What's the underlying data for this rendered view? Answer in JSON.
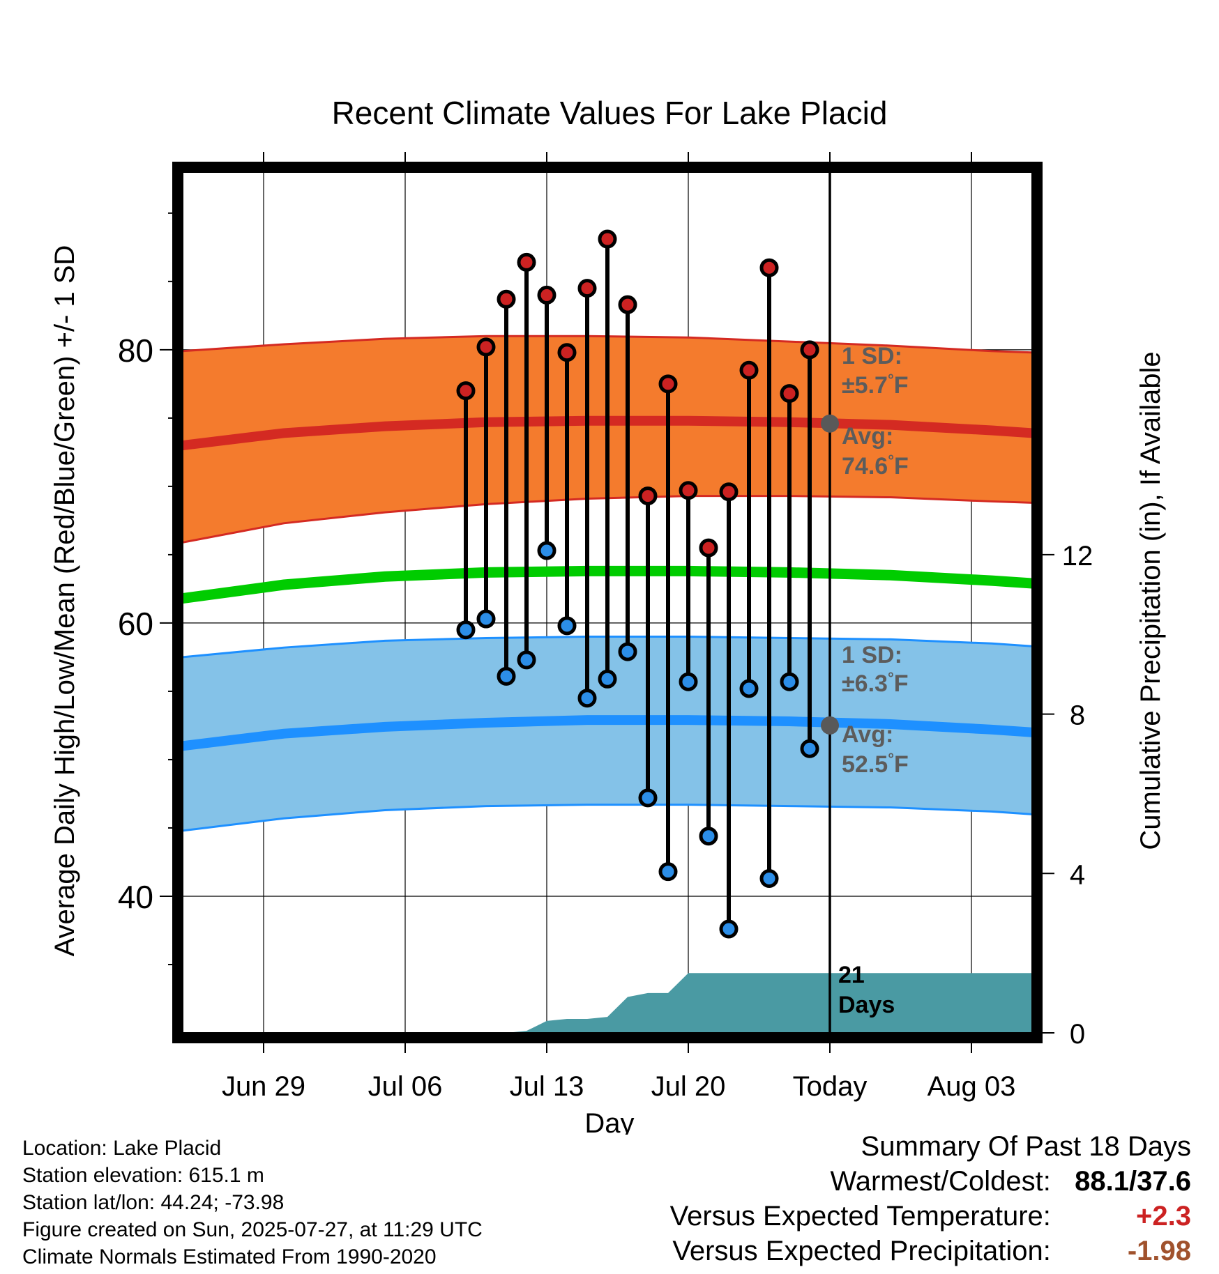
{
  "chart_data": {
    "type": "line",
    "title": "Recent Climate Values For Lake Placid",
    "xlabel": "Day",
    "ylabel": "Average Daily High/Low/Mean (Red/Blue/Green) +/- 1 SD",
    "ylabel_right": "Cumulative Precipitation (in), If Available",
    "x_range": [
      "2025-06-25",
      "2025-08-06"
    ],
    "ylim": [
      30,
      93
    ],
    "ylim_right": [
      0,
      21.6
    ],
    "x_ticks": [
      {
        "date": "2025-06-29",
        "label": "Jun 29"
      },
      {
        "date": "2025-07-06",
        "label": "Jul 06"
      },
      {
        "date": "2025-07-13",
        "label": "Jul 13"
      },
      {
        "date": "2025-07-20",
        "label": "Jul 20"
      },
      {
        "date": "2025-07-27",
        "label": "Today"
      },
      {
        "date": "2025-08-03",
        "label": "Aug 03"
      }
    ],
    "y_ticks": [
      40,
      60,
      80
    ],
    "y_ticks_right": [
      0,
      4,
      8,
      12
    ],
    "grid": true,
    "today": "2025-07-27",
    "normals": {
      "dates": [
        "2025-06-25",
        "2025-06-30",
        "2025-07-05",
        "2025-07-10",
        "2025-07-15",
        "2025-07-20",
        "2025-07-25",
        "2025-07-30",
        "2025-08-04",
        "2025-08-06"
      ],
      "high_mean": [
        73.0,
        73.9,
        74.4,
        74.7,
        74.8,
        74.8,
        74.7,
        74.5,
        74.1,
        73.9
      ],
      "high_upper": [
        79.9,
        80.4,
        80.8,
        81.0,
        81.0,
        80.9,
        80.6,
        80.3,
        79.9,
        79.8
      ],
      "high_lower": [
        65.9,
        67.3,
        68.1,
        68.7,
        69.1,
        69.3,
        69.3,
        69.2,
        68.9,
        68.8
      ],
      "mean_temp": [
        61.8,
        62.8,
        63.4,
        63.7,
        63.8,
        63.8,
        63.7,
        63.5,
        63.1,
        62.9
      ],
      "low_mean": [
        51.0,
        51.9,
        52.4,
        52.7,
        52.9,
        52.9,
        52.8,
        52.6,
        52.2,
        52.0
      ],
      "low_upper": [
        57.5,
        58.2,
        58.7,
        58.9,
        59.0,
        59.0,
        58.9,
        58.8,
        58.5,
        58.3
      ],
      "low_lower": [
        44.8,
        45.7,
        46.3,
        46.6,
        46.7,
        46.7,
        46.6,
        46.5,
        46.2,
        46.0
      ]
    },
    "observed": {
      "dates": [
        "2025-07-09",
        "2025-07-10",
        "2025-07-11",
        "2025-07-12",
        "2025-07-13",
        "2025-07-14",
        "2025-07-15",
        "2025-07-16",
        "2025-07-17",
        "2025-07-18",
        "2025-07-19",
        "2025-07-20",
        "2025-07-21",
        "2025-07-22",
        "2025-07-23",
        "2025-07-24",
        "2025-07-25",
        "2025-07-26"
      ],
      "highs": [
        77.0,
        80.2,
        83.7,
        86.4,
        84.0,
        79.8,
        84.5,
        88.1,
        83.3,
        69.3,
        77.5,
        69.7,
        65.5,
        69.6,
        78.5,
        86.0,
        76.8,
        80.0
      ],
      "lows": [
        59.5,
        60.3,
        56.1,
        57.3,
        65.3,
        59.8,
        54.5,
        55.9,
        57.9,
        47.2,
        41.8,
        55.7,
        44.4,
        37.6,
        55.2,
        41.3,
        55.7,
        50.8
      ]
    },
    "precip": {
      "dates": [
        "2025-07-11",
        "2025-07-12",
        "2025-07-13",
        "2025-07-14",
        "2025-07-15",
        "2025-07-16",
        "2025-07-17",
        "2025-07-18",
        "2025-07-19",
        "2025-07-20",
        "2025-07-21",
        "2025-08-06"
      ],
      "cumulative": [
        0.0,
        0.05,
        0.3,
        0.35,
        0.35,
        0.4,
        0.9,
        1.0,
        1.0,
        1.5,
        1.5,
        1.5
      ]
    },
    "annotations": {
      "high_sd": [
        "1 SD:",
        "±5.7",
        "°F"
      ],
      "high_avg": [
        "Avg:",
        "74.6",
        "°F"
      ],
      "low_sd": [
        "1 SD:",
        "±6.3",
        "°F"
      ],
      "low_avg": [
        "Avg:",
        "52.5",
        "°F"
      ],
      "days": [
        "21",
        "Days"
      ]
    },
    "colors": {
      "high_band": "#f47b2d",
      "high_line": "#d42a22",
      "high_point": "#cc2222",
      "low_band": "#84c2e8",
      "low_line": "#1e90ff",
      "low_point": "#2c8ee8",
      "mean_line": "#00cc00",
      "precip_fill": "#4a9aa3",
      "marker": "#595959",
      "annotation_text": "#5c5c5c"
    }
  },
  "info": {
    "location": "Location: Lake Placid",
    "elevation": "Station elevation: 615.1 m",
    "latlon": "Station lat/lon: 44.24; -73.98",
    "created": "Figure created on Sun, 2025-07-27, at 11:29 UTC",
    "normals": "Climate Normals Estimated From 1990-2020"
  },
  "summary": {
    "title": "Summary Of Past 18 Days",
    "warmest_coldest_label": "Warmest/Coldest:",
    "warmest_coldest_value": "88.1/37.6",
    "temp_label": "Versus Expected Temperature:",
    "temp_value": "+2.3",
    "temp_color": "#cc2222",
    "precip_label": "Versus Expected Precipitation:",
    "precip_value": "-1.98",
    "precip_color": "#a0522d"
  }
}
